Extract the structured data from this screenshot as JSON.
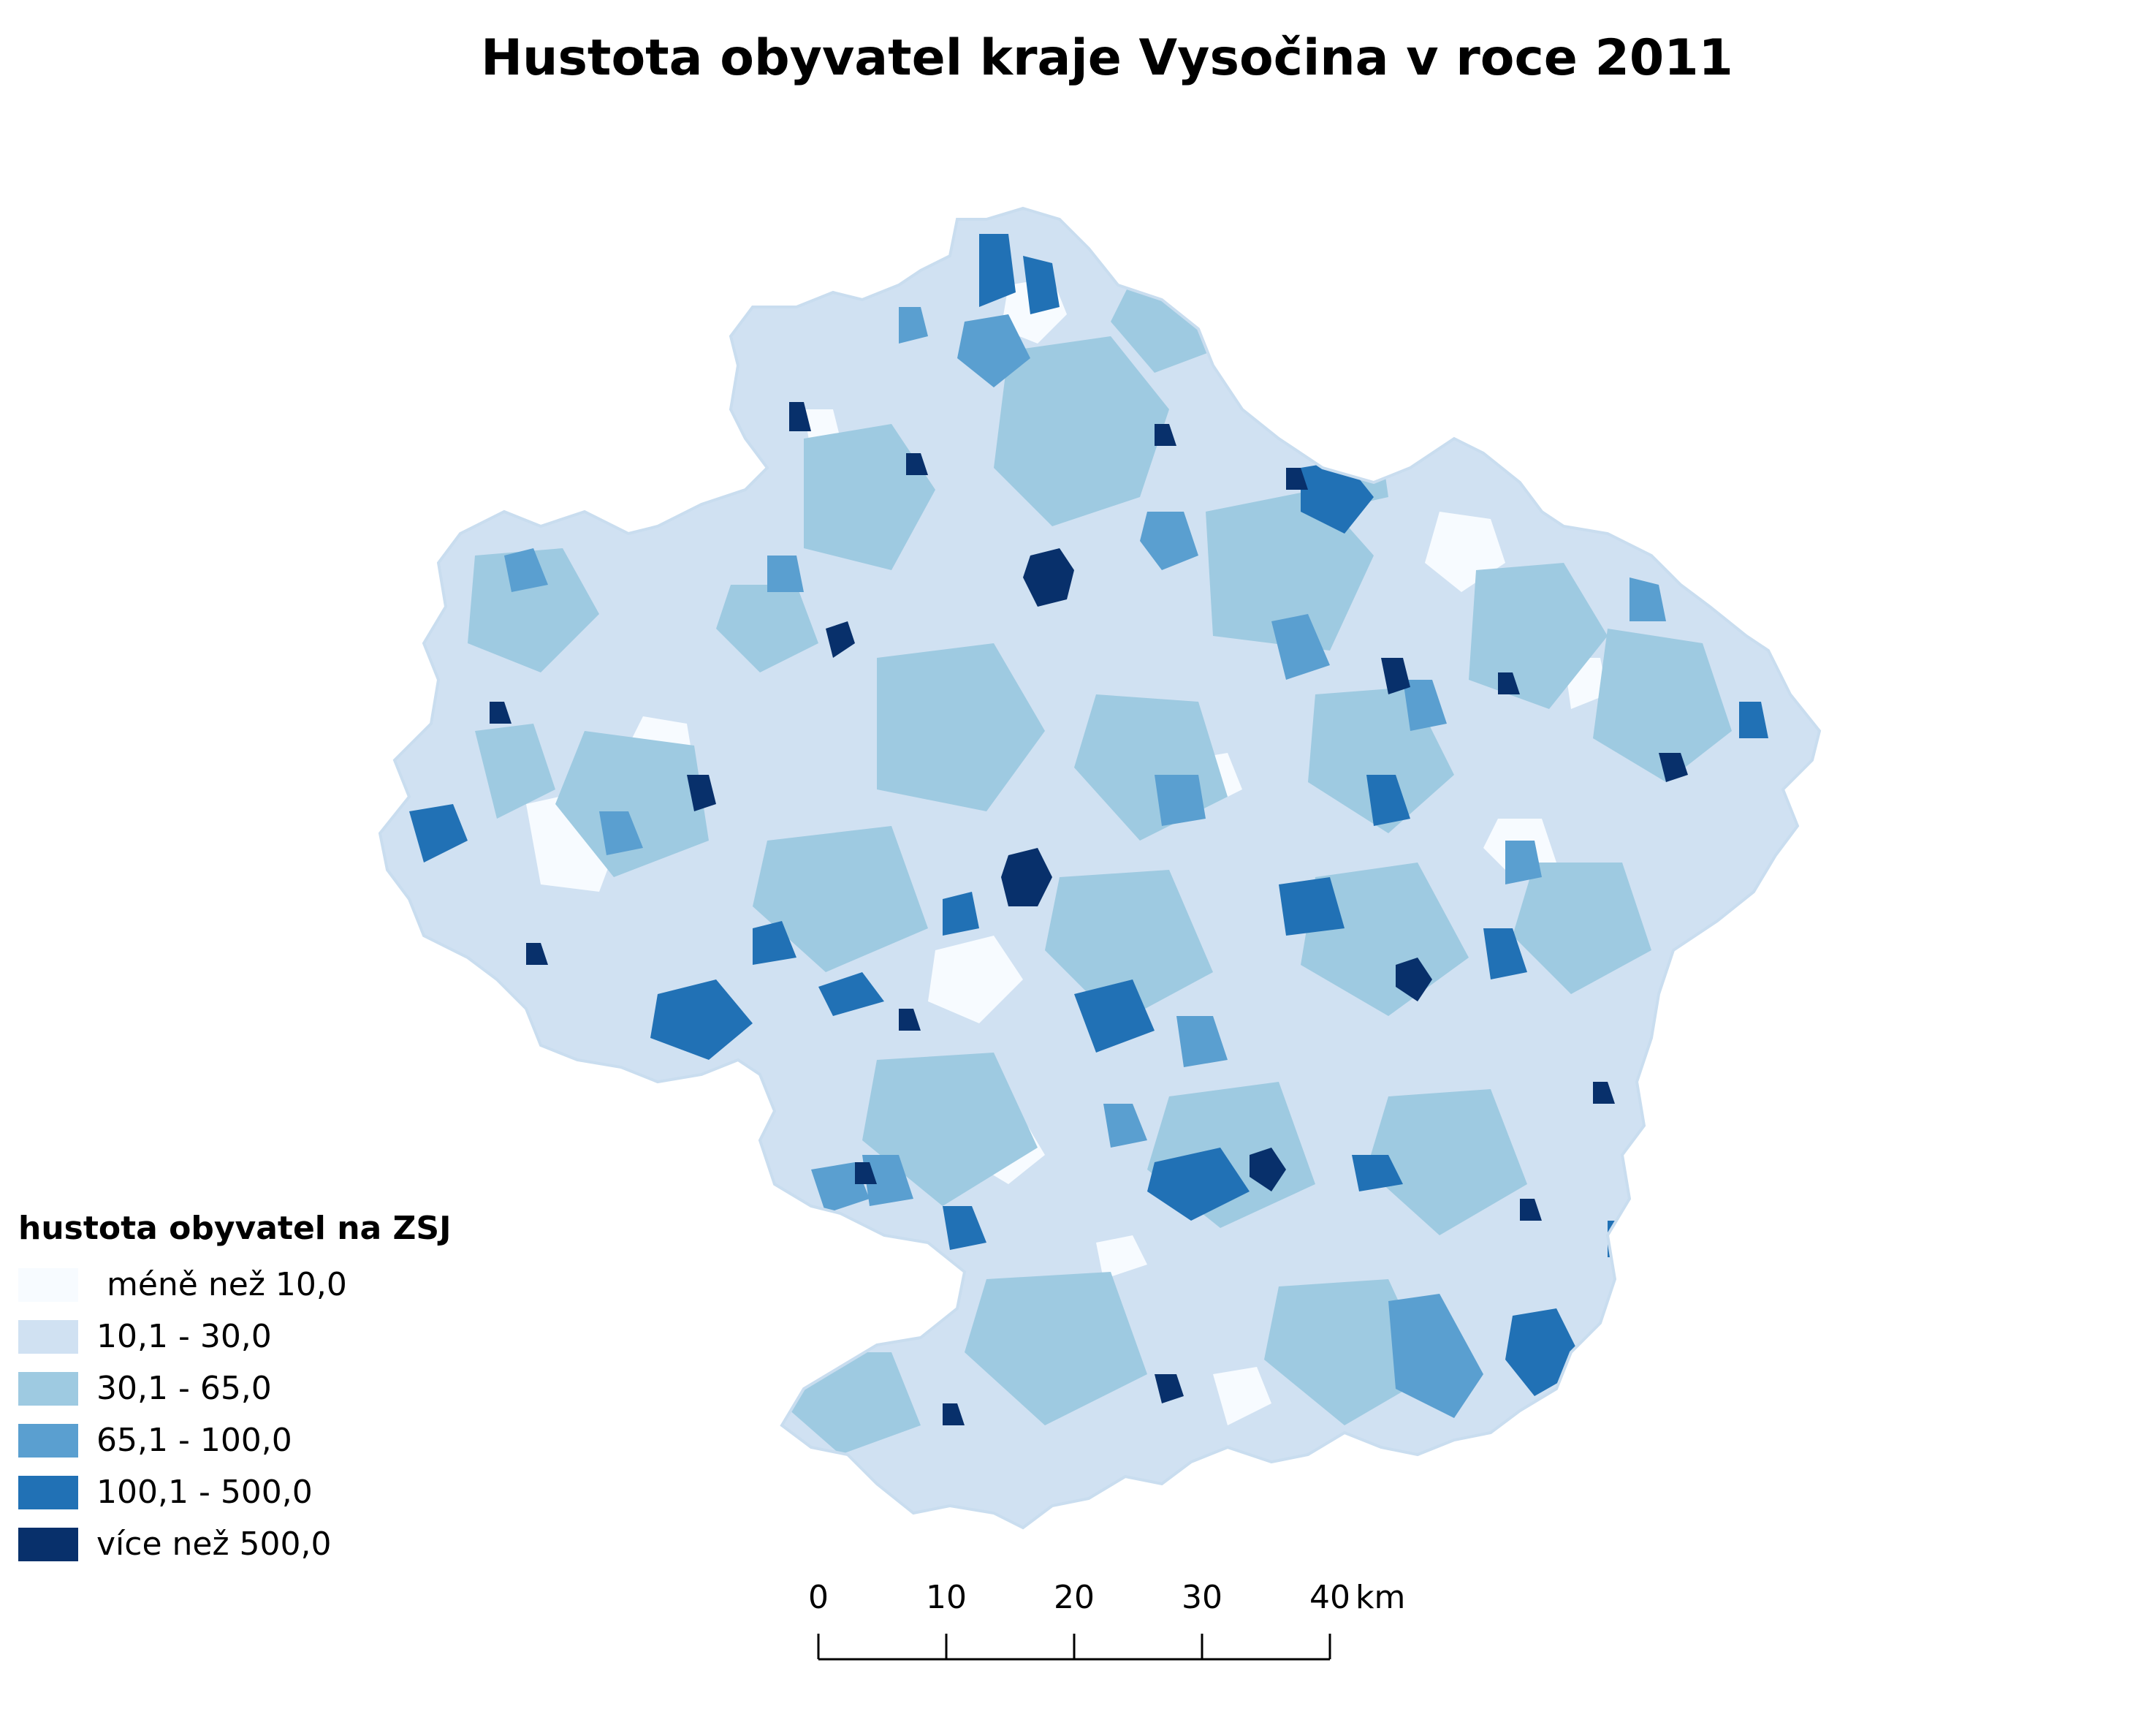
{
  "title": "Hustota obyvatel kraje Vysočina v roce 2011",
  "legend": {
    "title": "hustota obyvatel na ZSJ",
    "items": [
      {
        "label": " méně než 10,0",
        "color": "#f7fbff"
      },
      {
        "label": "10,1 - 30,0",
        "color": "#d0e1f2"
      },
      {
        "label": "30,1 - 65,0",
        "color": "#9ecae1"
      },
      {
        "label": "65,1 - 100,0",
        "color": "#5a9fd0"
      },
      {
        "label": "100,1 - 500,0",
        "color": "#2171b5"
      },
      {
        "label": "více než 500,0",
        "color": "#08306b"
      }
    ]
  },
  "scalebar": {
    "ticks": [
      "0",
      "10",
      "20",
      "30",
      "40"
    ],
    "unit": "km"
  }
}
